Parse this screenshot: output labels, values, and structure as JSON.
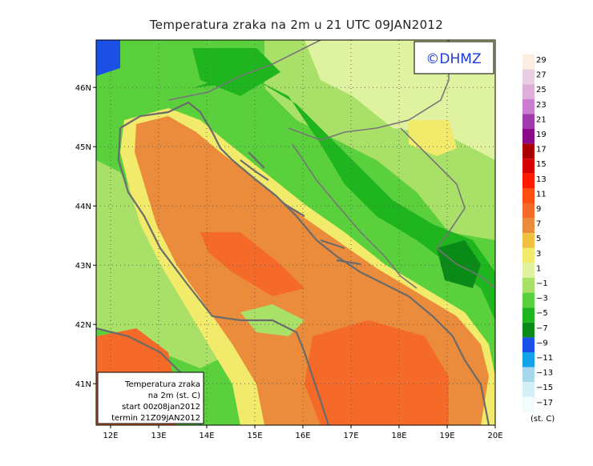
{
  "title": "Temperatura zraka na 2m u 21 UTC 09JAN2012",
  "logo_text": "©DHMZ",
  "info_box": {
    "line1": "Temperatura zraka",
    "line2": "na 2m (st. C)",
    "line3": "start 00z08jan2012",
    "line4": "termin 21Z09JAN2012"
  },
  "map": {
    "lon_labels": [
      "12E",
      "13E",
      "14E",
      "15E",
      "16E",
      "17E",
      "18E",
      "19E",
      "20E"
    ],
    "lat_labels": [
      "46N",
      "45N",
      "44N",
      "43N",
      "42N",
      "41N"
    ],
    "lon_range": [
      11.7,
      20.0
    ],
    "lat_range": [
      40.3,
      46.8
    ]
  },
  "legend": {
    "unit": "(st. C)",
    "entries": [
      {
        "label": "29",
        "color": "#fbeee0"
      },
      {
        "label": "27",
        "color": "#e8cfe0"
      },
      {
        "label": "25",
        "color": "#dcaed8"
      },
      {
        "label": "23",
        "color": "#c97ed0"
      },
      {
        "label": "21",
        "color": "#a23aae"
      },
      {
        "label": "19",
        "color": "#8a0a8a"
      },
      {
        "label": "17",
        "color": "#a80000"
      },
      {
        "label": "15",
        "color": "#d50000"
      },
      {
        "label": "13",
        "color": "#ff1a00"
      },
      {
        "label": "11",
        "color": "#ff4e10"
      },
      {
        "label": "9",
        "color": "#f56a28"
      },
      {
        "label": "7",
        "color": "#eb8c3c"
      },
      {
        "label": "5",
        "color": "#f0c040"
      },
      {
        "label": "3",
        "color": "#f2ea6a"
      },
      {
        "label": "1",
        "color": "#dff2a0"
      },
      {
        "label": "−1",
        "color": "#a8e068"
      },
      {
        "label": "−3",
        "color": "#5ad13c"
      },
      {
        "label": "−5",
        "color": "#1fb51f"
      },
      {
        "label": "−7",
        "color": "#0a8a16"
      },
      {
        "label": "−9",
        "color": "#1a4fe8"
      },
      {
        "label": "−11",
        "color": "#13a3e8"
      },
      {
        "label": "−13",
        "color": "#a6d8ec"
      },
      {
        "label": "−15",
        "color": "#d3f0f6"
      },
      {
        "label": "−17",
        "color": "#f2fcfc"
      }
    ]
  }
}
